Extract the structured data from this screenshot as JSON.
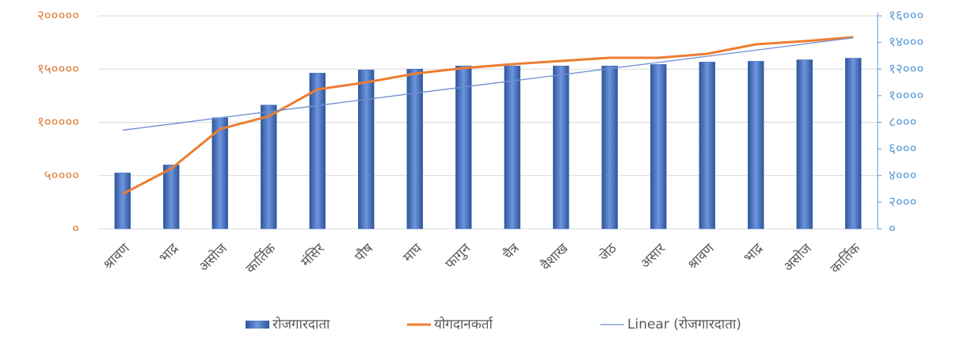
{
  "chart_data": {
    "type": "bar",
    "categories": [
      "श्रावण",
      "भाद्र",
      "असोज",
      "कार्तिक",
      "मंसिर",
      "पौष",
      "माघ",
      "फागुन",
      "चैत्र",
      "वैशाख",
      "जेठ",
      "असार",
      "श्रावण",
      "भाद्र",
      "असोज",
      "कार्तिक"
    ],
    "series": [
      {
        "name": "रोजगारदाता",
        "type": "bar",
        "axis": "y2",
        "color": "#4472c4",
        "values": [
          4200,
          4800,
          8350,
          9300,
          11700,
          11940,
          12000,
          12240,
          12240,
          12240,
          12240,
          12350,
          12530,
          12590,
          12700,
          12820
        ]
      },
      {
        "name": "योगदानकर्ता",
        "type": "line",
        "axis": "y",
        "color": "#ed7d31",
        "values": [
          32700,
          56500,
          93700,
          105600,
          130900,
          137500,
          145700,
          150900,
          154600,
          157600,
          160600,
          160600,
          164300,
          173200,
          176200,
          179900
        ]
      },
      {
        "name": "Linear (रोजगारदाता)",
        "type": "line",
        "axis": "y2",
        "color": "#6f8fd0",
        "values": [
          7410,
          7870,
          8340,
          8800,
          9260,
          9720,
          10190,
          10650,
          11110,
          11570,
          12040,
          12500,
          12960,
          13420,
          13890,
          14350
        ]
      }
    ],
    "ylim": [
      0,
      200000
    ],
    "yticks": [
      {
        "value": 0,
        "label": "०"
      },
      {
        "value": 50000,
        "label": "५००००"
      },
      {
        "value": 100000,
        "label": "१०००००"
      },
      {
        "value": 150000,
        "label": "१५००००"
      },
      {
        "value": 200000,
        "label": "२०००००"
      }
    ],
    "y2lim": [
      0,
      16000
    ],
    "y2ticks": [
      {
        "value": 0,
        "label": "०"
      },
      {
        "value": 2000,
        "label": "२०००"
      },
      {
        "value": 4000,
        "label": "४०००"
      },
      {
        "value": 6000,
        "label": "६०००"
      },
      {
        "value": 8000,
        "label": "८०००"
      },
      {
        "value": 10000,
        "label": "१००००"
      },
      {
        "value": 12000,
        "label": "१२०००"
      },
      {
        "value": 14000,
        "label": "१४०००"
      },
      {
        "value": 16000,
        "label": "१६०००"
      }
    ],
    "grid": true,
    "legend": "bottom"
  }
}
